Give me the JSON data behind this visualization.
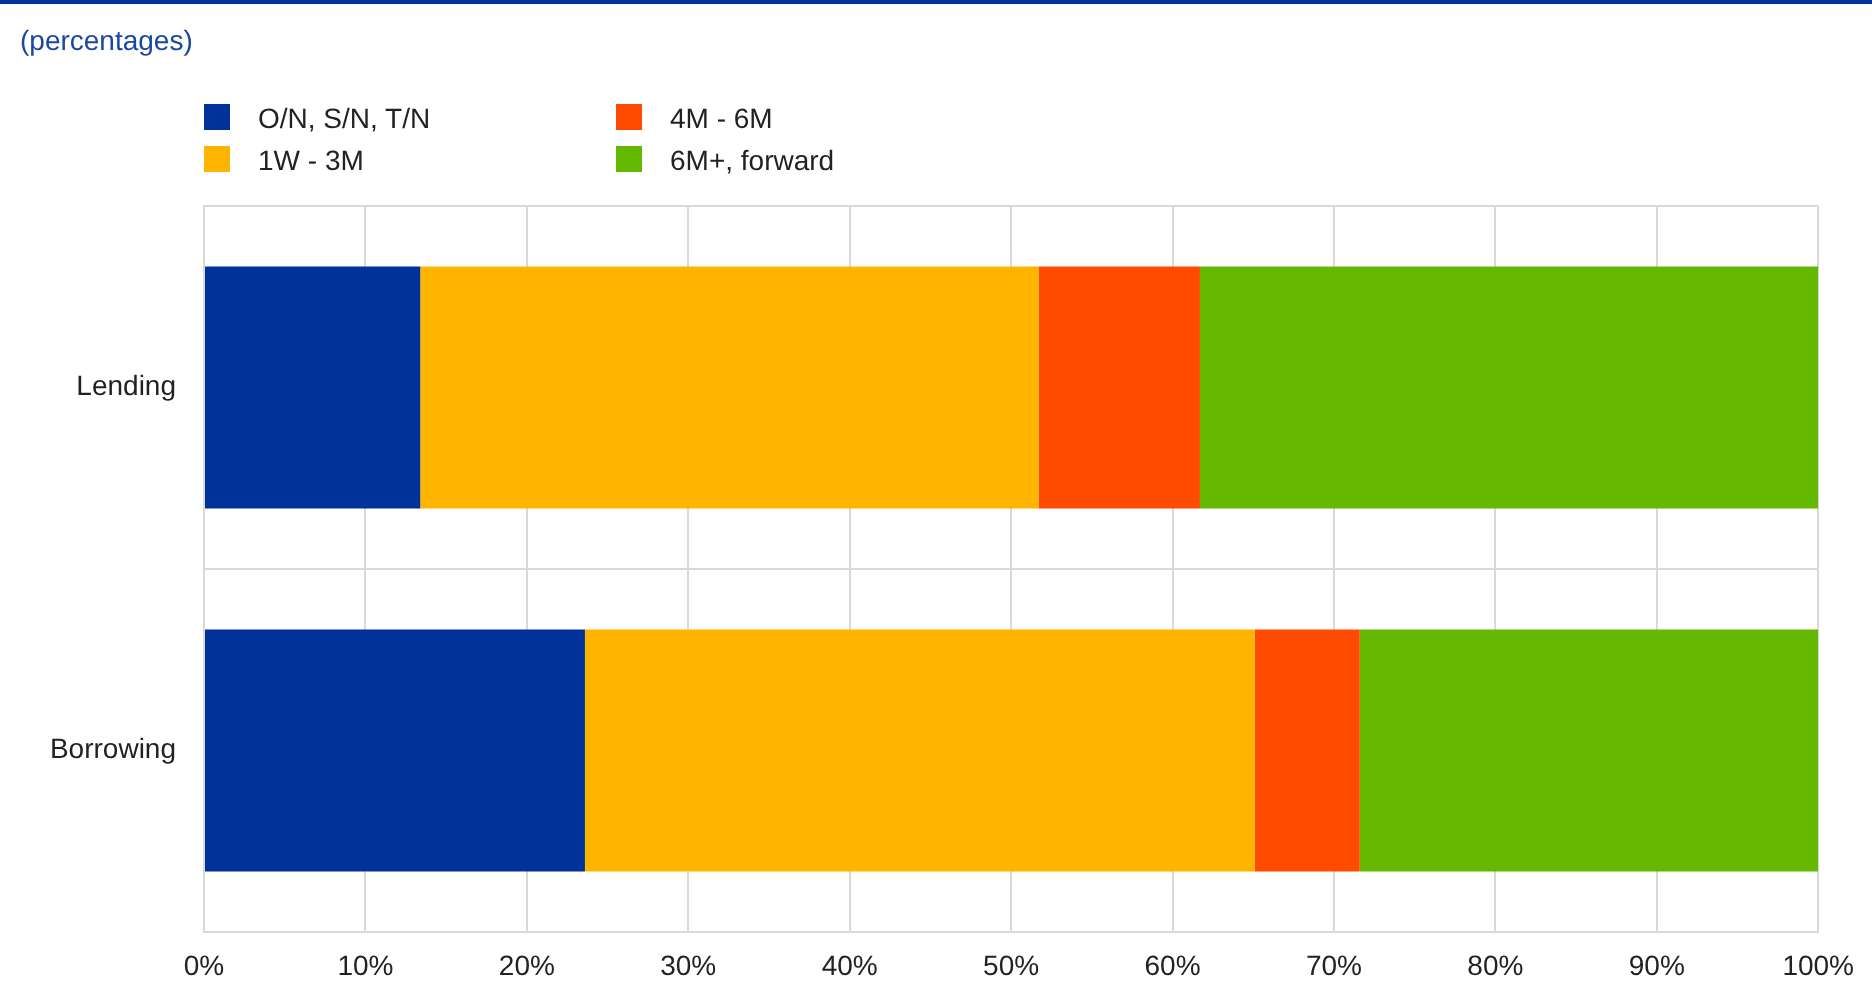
{
  "chart_data": {
    "type": "bar",
    "subtitle": "(percentages)",
    "orientation": "horizontal",
    "stacked": true,
    "categories": [
      "Lending",
      "Borrowing"
    ],
    "series": [
      {
        "name": "O/N, S/N, T/N",
        "color": "#003299",
        "values": [
          13.4,
          23.6
        ]
      },
      {
        "name": "1W - 3M",
        "color": "#ffb400",
        "values": [
          38.3,
          41.5
        ]
      },
      {
        "name": "4M - 6M",
        "color": "#ff4b00",
        "values": [
          10.0,
          6.5
        ]
      },
      {
        "name": "6M+, forward",
        "color": "#65b800",
        "values": [
          38.3,
          28.4
        ]
      }
    ],
    "xlim": [
      0,
      100
    ],
    "xticks": [
      {
        "value": 0,
        "label": "0%"
      },
      {
        "value": 10,
        "label": "10%"
      },
      {
        "value": 20,
        "label": "20%"
      },
      {
        "value": 30,
        "label": "30%"
      },
      {
        "value": 40,
        "label": "40%"
      },
      {
        "value": 50,
        "label": "50%"
      },
      {
        "value": 60,
        "label": "60%"
      },
      {
        "value": 70,
        "label": "70%"
      },
      {
        "value": 80,
        "label": "80%"
      },
      {
        "value": 90,
        "label": "90%"
      },
      {
        "value": 100,
        "label": "100%"
      }
    ],
    "grid": true,
    "legend": "top left"
  }
}
